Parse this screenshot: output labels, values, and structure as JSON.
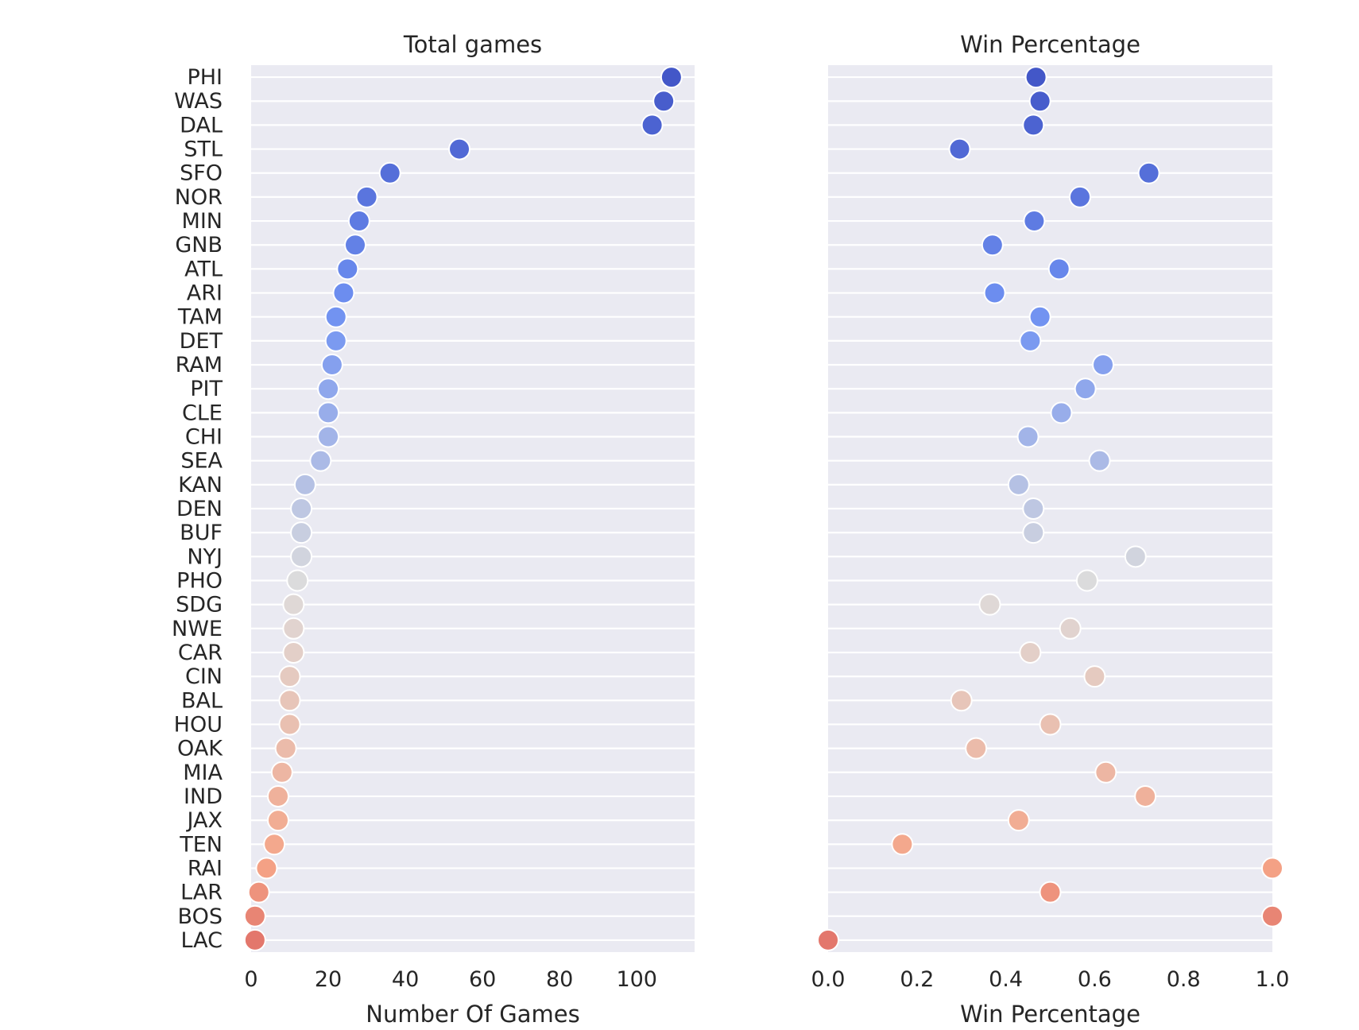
{
  "chart_data": [
    {
      "type": "scatter",
      "title": "Total games",
      "xlabel": "Number Of Games",
      "ylabel": "",
      "xlim": [
        0,
        115
      ],
      "xticks": [
        0,
        20,
        40,
        60,
        80,
        100
      ],
      "xtick_labels": [
        "0",
        "20",
        "40",
        "60",
        "80",
        "100"
      ],
      "grid": "horizontal",
      "categories": [
        "PHI",
        "WAS",
        "DAL",
        "STL",
        "SFO",
        "NOR",
        "MIN",
        "GNB",
        "ATL",
        "ARI",
        "TAM",
        "DET",
        "RAM",
        "PIT",
        "CLE",
        "CHI",
        "SEA",
        "KAN",
        "DEN",
        "BUF",
        "NYJ",
        "PHO",
        "SDG",
        "NWE",
        "CAR",
        "CIN",
        "BAL",
        "HOU",
        "OAK",
        "MIA",
        "IND",
        "JAX",
        "TEN",
        "RAI",
        "LAR",
        "BOS",
        "LAC"
      ],
      "values": [
        109,
        107,
        104,
        54,
        36,
        30,
        28,
        27,
        25,
        24,
        22,
        22,
        21,
        20,
        20,
        20,
        18,
        14,
        13,
        13,
        13,
        12,
        11,
        11,
        11,
        10,
        10,
        10,
        9,
        8,
        7,
        7,
        6,
        4,
        2,
        1,
        1
      ]
    },
    {
      "type": "scatter",
      "title": "Win Percentage",
      "xlabel": "Win Percentage",
      "ylabel": "",
      "xlim": [
        0,
        1
      ],
      "xticks": [
        0,
        0.2,
        0.4,
        0.6,
        0.8,
        1.0
      ],
      "xtick_labels": [
        "0.0",
        "0.2",
        "0.4",
        "0.6",
        "0.8",
        "1.0"
      ],
      "grid": "horizontal",
      "categories": [
        "PHI",
        "WAS",
        "DAL",
        "STL",
        "SFO",
        "NOR",
        "MIN",
        "GNB",
        "ATL",
        "ARI",
        "TAM",
        "DET",
        "RAM",
        "PIT",
        "CLE",
        "CHI",
        "SEA",
        "KAN",
        "DEN",
        "BUF",
        "NYJ",
        "PHO",
        "SDG",
        "NWE",
        "CAR",
        "CIN",
        "BAL",
        "HOU",
        "OAK",
        "MIA",
        "IND",
        "JAX",
        "TEN",
        "RAI",
        "LAR",
        "BOS",
        "LAC"
      ],
      "values": [
        0.468,
        0.477,
        0.462,
        0.296,
        0.722,
        0.567,
        0.464,
        0.37,
        0.52,
        0.375,
        0.477,
        0.455,
        0.619,
        0.579,
        0.525,
        0.45,
        0.611,
        0.429,
        0.462,
        0.462,
        0.692,
        0.583,
        0.364,
        0.545,
        0.455,
        0.6,
        0.3,
        0.5,
        0.333,
        0.625,
        0.714,
        0.429,
        0.167,
        1.0,
        0.5,
        1.0,
        0.0
      ]
    }
  ],
  "colors": {
    "panel_background": "#eaeaf2",
    "grid": "#ffffff",
    "marker_edge": "#ffffff",
    "palette": "coolwarm"
  }
}
